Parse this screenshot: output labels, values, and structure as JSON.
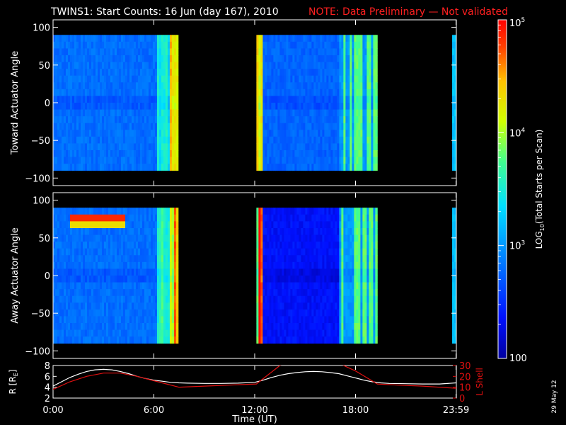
{
  "title": "TWINS1: Start Counts: 16 Jun (day 167), 2010",
  "note": "NOTE: Data Preliminary — Not validated",
  "stamp": "29 May 12",
  "colors": {
    "note": "#ff2020",
    "trace_r": "#ffffff",
    "trace_l": "#e01010"
  },
  "chart_data": [
    {
      "type": "heatmap",
      "ylabel": "Toward Actuator Angle",
      "ylim": [
        -110,
        110
      ],
      "yticks": [
        -100,
        -50,
        0,
        50,
        100
      ],
      "y_data_range": [
        -90,
        90
      ],
      "x_data_segments_hours": [
        [
          0.0,
          7.45
        ],
        [
          12.1,
          19.3
        ],
        [
          23.75,
          24.0
        ]
      ],
      "xlim_hours": [
        0,
        24
      ]
    },
    {
      "type": "heatmap",
      "ylabel": "Away Actuator Angle",
      "ylim": [
        -110,
        110
      ],
      "yticks": [
        -100,
        -50,
        0,
        50,
        100
      ],
      "y_data_range": [
        -90,
        90
      ],
      "x_data_segments_hours": [
        [
          0.0,
          7.45
        ],
        [
          12.1,
          19.3
        ],
        [
          23.75,
          24.0
        ]
      ],
      "xlim_hours": [
        0,
        24
      ]
    },
    {
      "type": "line",
      "xlabel": "Time (UT)",
      "xticks": [
        "0:00",
        "6:00",
        "12:00",
        "18:00",
        "23:59"
      ],
      "xtick_hours": [
        0,
        6,
        12,
        18,
        23.983
      ],
      "ylabel_left": "R [RE]",
      "ylim_left": [
        2,
        8
      ],
      "yticks_left": [
        2,
        4,
        6,
        8
      ],
      "ylabel_right": "L Shell",
      "ylim_right": [
        0,
        30
      ],
      "yticks_right": [
        0,
        10,
        20,
        30
      ],
      "series": [
        {
          "axis": "left",
          "x": [
            0,
            0.5,
            1,
            1.5,
            2,
            2.5,
            3,
            3.5,
            4,
            4.5,
            5,
            5.5,
            6,
            6.5,
            7,
            7.5,
            8,
            9,
            10,
            11,
            12,
            12.5,
            13,
            13.5,
            14,
            14.5,
            15,
            15.5,
            16,
            16.5,
            17,
            17.5,
            18,
            18.5,
            19,
            19.5,
            20,
            21,
            22,
            23,
            24
          ],
          "y": [
            4.2,
            5.0,
            5.8,
            6.4,
            6.9,
            7.2,
            7.3,
            7.2,
            6.9,
            6.5,
            6.0,
            5.6,
            5.3,
            5.1,
            4.9,
            4.8,
            4.75,
            4.7,
            4.7,
            4.75,
            4.9,
            5.3,
            5.8,
            6.2,
            6.5,
            6.7,
            6.85,
            6.9,
            6.85,
            6.7,
            6.5,
            6.1,
            5.7,
            5.3,
            5.0,
            4.8,
            4.7,
            4.65,
            4.6,
            4.6,
            4.8
          ]
        },
        {
          "axis": "right",
          "x": [
            0,
            1,
            2,
            3,
            4,
            5,
            6,
            7.5,
            9,
            10.5,
            12.1,
            13.5,
            14,
            14.5,
            15,
            15.5,
            16,
            16.5,
            17,
            18,
            19.3,
            20.5,
            22,
            23,
            24
          ],
          "y": [
            8,
            15,
            20,
            23,
            23,
            20,
            16,
            10,
            11,
            12,
            13,
            30,
            32,
            32,
            32,
            32,
            32,
            32,
            32,
            25,
            13,
            12,
            11,
            10,
            9
          ]
        }
      ]
    },
    {
      "type": "heatmap",
      "colorbar": true,
      "label": "LOG10(Total Starts per Scan)",
      "scale": "log",
      "range": [
        100,
        100000
      ],
      "tick_labels": [
        "100",
        "10^3",
        "10^4",
        "10^5"
      ],
      "tick_values": [
        100,
        1000,
        10000,
        100000
      ]
    }
  ]
}
